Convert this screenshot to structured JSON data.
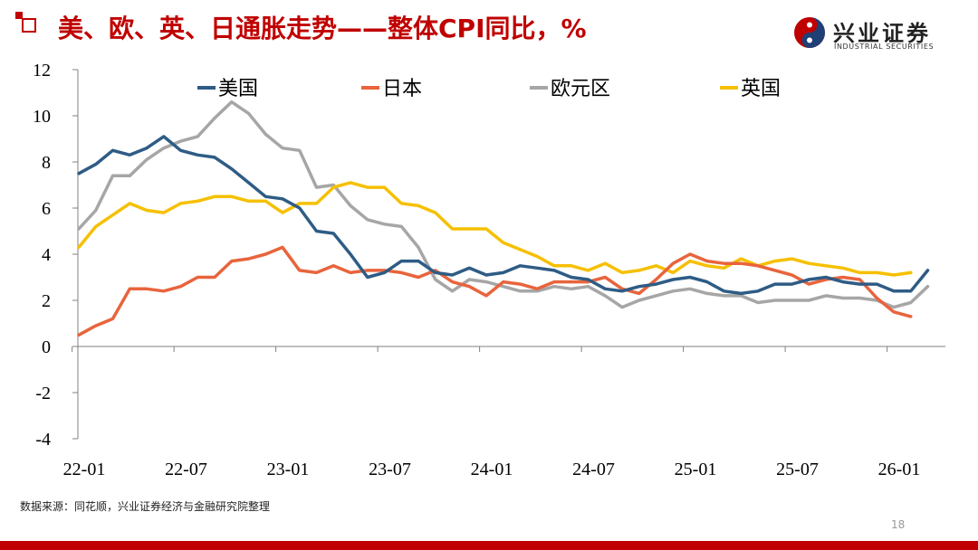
{
  "header": {
    "title": "美、欧、英、日通胀走势——整体CPI同比，%",
    "logo_cn": "兴业证券",
    "logo_en": "INDUSTRIAL SECURITIES"
  },
  "footer": {
    "source": "数据来源：同花顺，兴业证券经济与金融研究院整理",
    "page_number": "18"
  },
  "colors": {
    "accent": "#c00000"
  },
  "chart_data": {
    "type": "line",
    "title": "",
    "xlabel": "",
    "ylabel": "",
    "ylim": [
      -4,
      12
    ],
    "yticks": [
      "12",
      "10",
      "8",
      "6",
      "4",
      "2",
      "0",
      "-2",
      "-4"
    ],
    "xticks": [
      "22-01",
      "22-07",
      "23-01",
      "23-07",
      "24-01",
      "24-07",
      "25-01",
      "25-07",
      "26-01"
    ],
    "legend_position": "top",
    "grid": false,
    "x_start": "2022-01",
    "series": [
      {
        "name": "美国",
        "color": "#2e5c85",
        "values": [
          7.5,
          7.9,
          8.5,
          8.3,
          8.6,
          9.1,
          8.5,
          8.3,
          8.2,
          7.7,
          7.1,
          6.5,
          6.4,
          6.0,
          5.0,
          4.9,
          4.0,
          3.0,
          3.2,
          3.7,
          3.7,
          3.2,
          3.1,
          3.4,
          3.1,
          3.2,
          3.5,
          3.4,
          3.3,
          3.0,
          2.9,
          2.5,
          2.4,
          2.6,
          2.7,
          2.9,
          3.0,
          2.8,
          2.4,
          2.3,
          2.4,
          2.7,
          2.7,
          2.9,
          3.0,
          2.8,
          2.7,
          2.7,
          2.4,
          2.4,
          3.3
        ]
      },
      {
        "name": "日本",
        "color": "#e8643c",
        "values": [
          0.5,
          0.9,
          1.2,
          2.5,
          2.5,
          2.4,
          2.6,
          3.0,
          3.0,
          3.7,
          3.8,
          4.0,
          4.3,
          3.3,
          3.2,
          3.5,
          3.2,
          3.3,
          3.3,
          3.2,
          3.0,
          3.3,
          2.8,
          2.6,
          2.2,
          2.8,
          2.7,
          2.5,
          2.8,
          2.8,
          2.8,
          3.0,
          2.5,
          2.3,
          2.9,
          3.6,
          4.0,
          3.7,
          3.6,
          3.6,
          3.5,
          3.3,
          3.1,
          2.7,
          2.9,
          3.0,
          2.9,
          2.1,
          1.5,
          1.3
        ]
      },
      {
        "name": "欧元区",
        "color": "#a6a6a6",
        "values": [
          5.1,
          5.9,
          7.4,
          7.4,
          8.1,
          8.6,
          8.9,
          9.1,
          9.9,
          10.6,
          10.1,
          9.2,
          8.6,
          8.5,
          6.9,
          7.0,
          6.1,
          5.5,
          5.3,
          5.2,
          4.3,
          2.9,
          2.4,
          2.9,
          2.8,
          2.6,
          2.4,
          2.4,
          2.6,
          2.5,
          2.6,
          2.2,
          1.7,
          2.0,
          2.2,
          2.4,
          2.5,
          2.3,
          2.2,
          2.2,
          1.9,
          2.0,
          2.0,
          2.0,
          2.2,
          2.1,
          2.1,
          2.0,
          1.7,
          1.9,
          2.6
        ]
      },
      {
        "name": "英国",
        "color": "#f5c000",
        "values": [
          4.3,
          5.2,
          5.7,
          6.2,
          5.9,
          5.8,
          6.2,
          6.3,
          6.5,
          6.5,
          6.3,
          6.3,
          5.8,
          6.2,
          6.2,
          6.9,
          7.1,
          6.9,
          6.9,
          6.2,
          6.1,
          5.8,
          5.1,
          5.1,
          5.1,
          4.5,
          4.2,
          3.9,
          3.5,
          3.5,
          3.3,
          3.6,
          3.2,
          3.3,
          3.5,
          3.2,
          3.7,
          3.5,
          3.4,
          3.8,
          3.5,
          3.7,
          3.8,
          3.6,
          3.5,
          3.4,
          3.2,
          3.2,
          3.1,
          3.2
        ]
      }
    ]
  }
}
